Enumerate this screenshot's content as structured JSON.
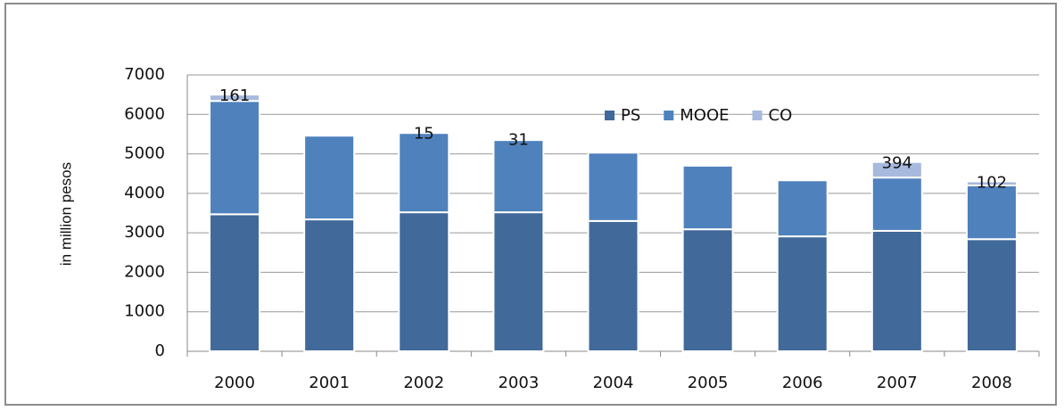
{
  "chart_data": {
    "type": "stacked_bar",
    "y_label": "in million pesos",
    "categories": [
      "2000",
      "2001",
      "2002",
      "2003",
      "2004",
      "2005",
      "2006",
      "2007",
      "2008"
    ],
    "series": [
      {
        "name": "PS",
        "color": "#41699a",
        "values": [
          3470,
          3340,
          3520,
          3520,
          3300,
          3090,
          2910,
          3050,
          2840
        ]
      },
      {
        "name": "MOOE",
        "color": "#4f81bd",
        "values": [
          2870,
          2120,
          2010,
          1830,
          1730,
          1610,
          1420,
          1350,
          1360
        ]
      },
      {
        "name": "CO",
        "color": "#a7b9dc",
        "values": [
          161,
          null,
          15,
          31,
          null,
          null,
          null,
          394,
          102
        ],
        "show_labels": true
      }
    ],
    "ylim": [
      0,
      7000
    ],
    "yticks": [
      0,
      1000,
      2000,
      3000,
      4000,
      5000,
      6000,
      7000
    ],
    "grid": true
  }
}
